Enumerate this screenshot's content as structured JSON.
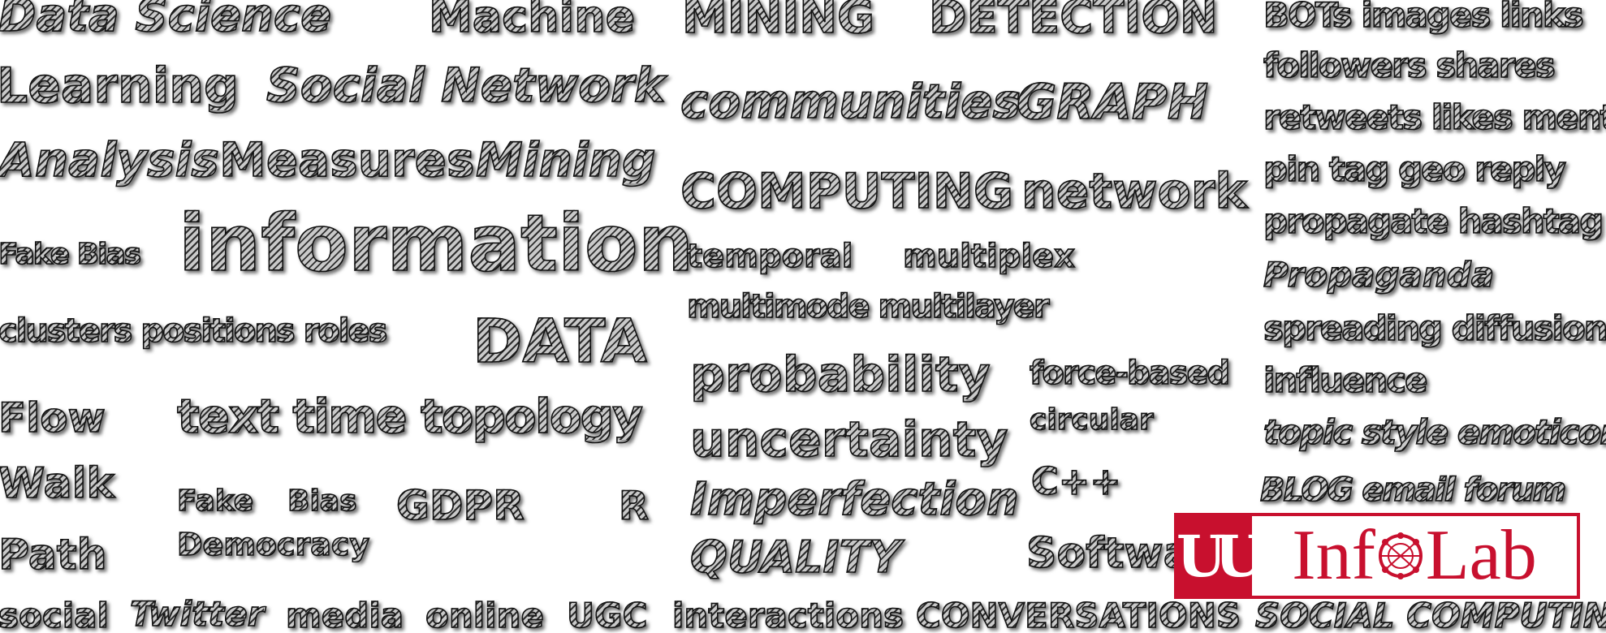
{
  "words": [
    {
      "id": "w1",
      "text": "Data Science",
      "italic": true
    },
    {
      "id": "w2",
      "text": "Machine"
    },
    {
      "id": "w3",
      "text": "Learning"
    },
    {
      "id": "w4",
      "text": "Social Network",
      "italic": true
    },
    {
      "id": "w5",
      "text": "Analysis",
      "italic": true
    },
    {
      "id": "w6",
      "text": "Measures"
    },
    {
      "id": "w7",
      "text": "Mining",
      "italic": true
    },
    {
      "id": "w8",
      "text": "Fake Bias"
    },
    {
      "id": "w9",
      "text": "information"
    },
    {
      "id": "w10",
      "text": "clusters positions roles"
    },
    {
      "id": "w11",
      "text": "DATA"
    },
    {
      "id": "w12",
      "text": "Flow"
    },
    {
      "id": "w13",
      "text": "text time topology"
    },
    {
      "id": "w14",
      "text": "Walk"
    },
    {
      "id": "w15",
      "text": "Fake"
    },
    {
      "id": "w16",
      "text": "Bias"
    },
    {
      "id": "w17",
      "text": "GDPR"
    },
    {
      "id": "w18",
      "text": "R"
    },
    {
      "id": "w19",
      "text": "Path"
    },
    {
      "id": "w20",
      "text": "Democracy"
    },
    {
      "id": "w21",
      "text": "social"
    },
    {
      "id": "w22",
      "text": "Twitter",
      "italic": true
    },
    {
      "id": "w23",
      "text": "media"
    },
    {
      "id": "w24",
      "text": "online"
    },
    {
      "id": "w25",
      "text": "UGC"
    },
    {
      "id": "w26",
      "text": "interactions"
    },
    {
      "id": "w27",
      "text": "CONVERSATIONS"
    },
    {
      "id": "w28",
      "text": "MINING"
    },
    {
      "id": "w29",
      "text": "DETECTION"
    },
    {
      "id": "w30",
      "text": "communities",
      "italic": true
    },
    {
      "id": "w31",
      "text": "GRAPH",
      "italic": true
    },
    {
      "id": "w32",
      "text": "COMPUTING"
    },
    {
      "id": "w33",
      "text": "network"
    },
    {
      "id": "w34",
      "text": "temporal"
    },
    {
      "id": "w35",
      "text": "multiplex"
    },
    {
      "id": "w36",
      "text": "multimode multilayer"
    },
    {
      "id": "w37",
      "text": "probability"
    },
    {
      "id": "w38",
      "text": "force-based"
    },
    {
      "id": "w39",
      "text": "circular"
    },
    {
      "id": "w40",
      "text": "uncertainty"
    },
    {
      "id": "w41",
      "text": "Imperfection",
      "italic": true
    },
    {
      "id": "w42",
      "text": "C++"
    },
    {
      "id": "w43",
      "text": "QUALITY",
      "italic": true
    },
    {
      "id": "w44",
      "text": "Software"
    },
    {
      "id": "w45",
      "text": "BOTs images links"
    },
    {
      "id": "w46",
      "text": "followers shares"
    },
    {
      "id": "w47",
      "text": "retweets likes mentions"
    },
    {
      "id": "w48",
      "text": "pin tag geo reply"
    },
    {
      "id": "w49",
      "text": "propagate hashtag"
    },
    {
      "id": "w50",
      "text": "Propaganda",
      "italic": true
    },
    {
      "id": "w51",
      "text": "spreading diffusion"
    },
    {
      "id": "w52",
      "text": "influence"
    },
    {
      "id": "w53",
      "text": "topic style emoticons",
      "italic": true
    },
    {
      "id": "w54",
      "text": "BLOG email forum",
      "italic": true
    },
    {
      "id": "w55",
      "text": "SOCIAL COMPUTING",
      "italic": true
    }
  ],
  "logo": {
    "mark": "U",
    "text_before": "Inf",
    "text_after": "Lab",
    "color": "#c8102e"
  }
}
